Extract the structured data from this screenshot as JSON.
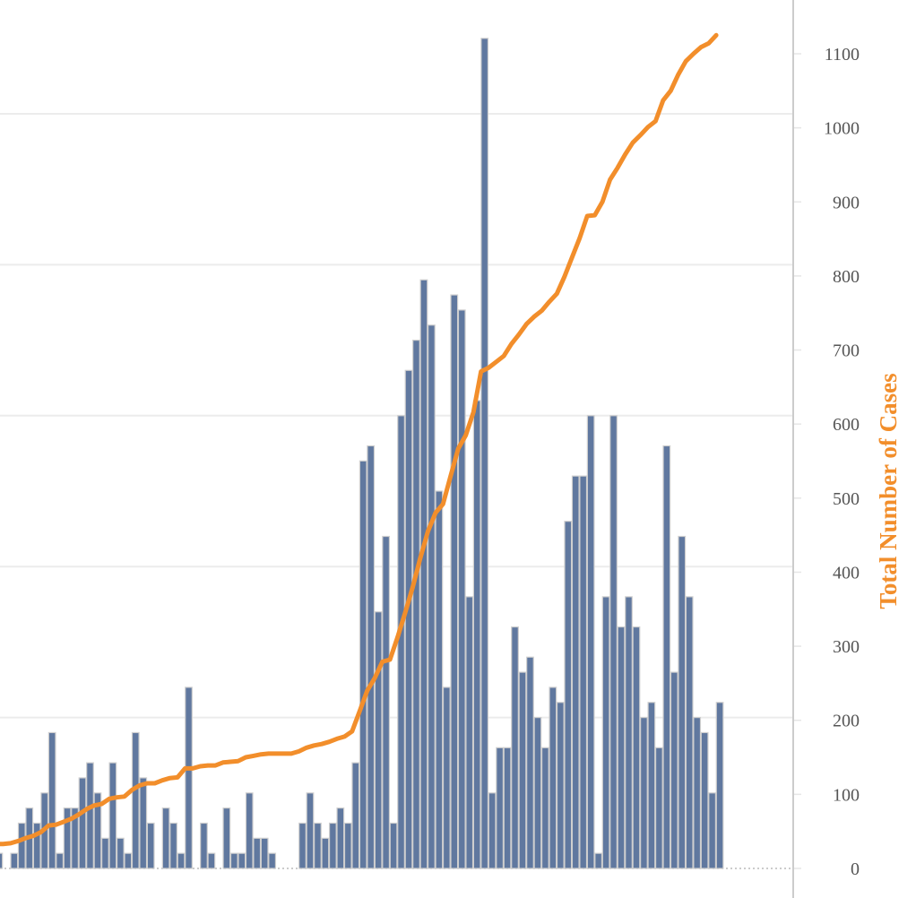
{
  "chart_data": {
    "type": "bar+line",
    "bar_series": {
      "values": [
        1,
        0,
        1,
        3,
        4,
        3,
        5,
        9,
        1,
        4,
        4,
        6,
        7,
        5,
        2,
        7,
        2,
        1,
        9,
        6,
        3,
        0,
        4,
        3,
        1,
        12,
        0,
        3,
        1,
        0,
        4,
        1,
        1,
        5,
        2,
        2,
        1,
        0,
        0,
        0,
        3,
        5,
        3,
        2,
        3,
        4,
        3,
        7,
        27,
        28,
        17,
        22,
        3,
        30,
        33,
        35,
        39,
        36,
        25,
        12,
        38,
        37,
        18,
        31,
        55,
        5,
        8,
        8,
        16,
        13,
        14,
        10,
        8,
        12,
        11,
        23,
        26,
        26,
        30,
        1,
        18,
        30,
        16,
        18,
        16,
        10,
        11,
        8,
        28,
        13,
        22,
        18,
        10,
        9,
        5,
        11
      ],
      "color": "#60789f",
      "axis": "left (not shown)",
      "gridlines": [
        10,
        20,
        30,
        40,
        50
      ]
    },
    "line_series": {
      "name": "Total Number of Cases",
      "start_value": 32,
      "cumulative_of_bars": true,
      "color": "#f28e2b"
    },
    "right_axis": {
      "label": "Total Number of Cases",
      "ticks": [
        "0",
        "100",
        "200",
        "300",
        "400",
        "500",
        "600",
        "700",
        "800",
        "900",
        "1000",
        "1100"
      ],
      "ylim": [
        0,
        1100
      ]
    },
    "grid": true
  }
}
